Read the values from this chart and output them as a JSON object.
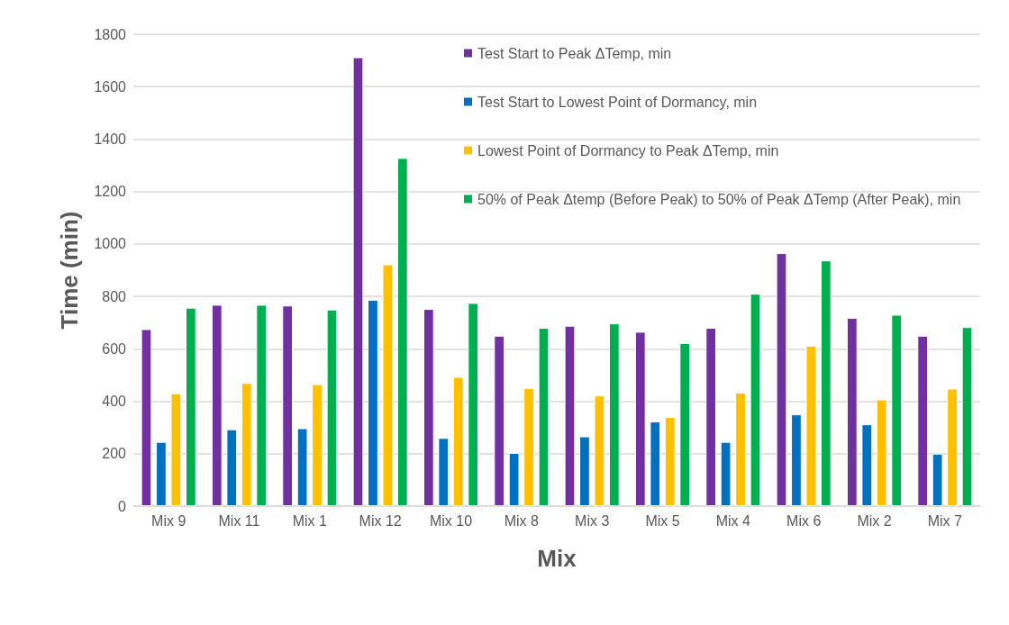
{
  "chart_data": {
    "type": "bar",
    "xlabel": "Mix",
    "ylabel": "Time (min)",
    "categories": [
      "Mix 9",
      "Mix 11",
      "Mix 1",
      "Mix 12",
      "Mix 10",
      "Mix 8",
      "Mix 3",
      "Mix 5",
      "Mix 4",
      "Mix 6",
      "Mix 2",
      "Mix 7"
    ],
    "series": [
      {
        "name": "Test Start to Peak ΔTemp, min",
        "color": "#7030a0",
        "values": [
          675,
          768,
          765,
          1712,
          752,
          650,
          688,
          665,
          680,
          965,
          718,
          650
        ]
      },
      {
        "name": "Test Start to Lowest Point of Dormancy, min",
        "color": "#0070c0",
        "values": [
          245,
          293,
          297,
          787,
          260,
          203,
          266,
          323,
          245,
          350,
          312,
          200
        ]
      },
      {
        "name": "Lowest Point of Dormancy to Peak ΔTemp, min",
        "color": "#ffc000",
        "values": [
          430,
          470,
          465,
          922,
          493,
          450,
          422,
          340,
          433,
          612,
          407,
          448
        ]
      },
      {
        "name": "50% of Peak Δtemp (Before Peak) to 50% of Peak ΔTemp (After Peak), min",
        "color": "#00b050",
        "values": [
          757,
          768,
          750,
          1328,
          775,
          680,
          697,
          622,
          810,
          937,
          730,
          683
        ]
      }
    ],
    "ylim": [
      0,
      1800
    ],
    "yticks": [
      0,
      200,
      400,
      600,
      800,
      1000,
      1200,
      1400,
      1600,
      1800
    ],
    "grid": "y",
    "legend": "top right"
  }
}
